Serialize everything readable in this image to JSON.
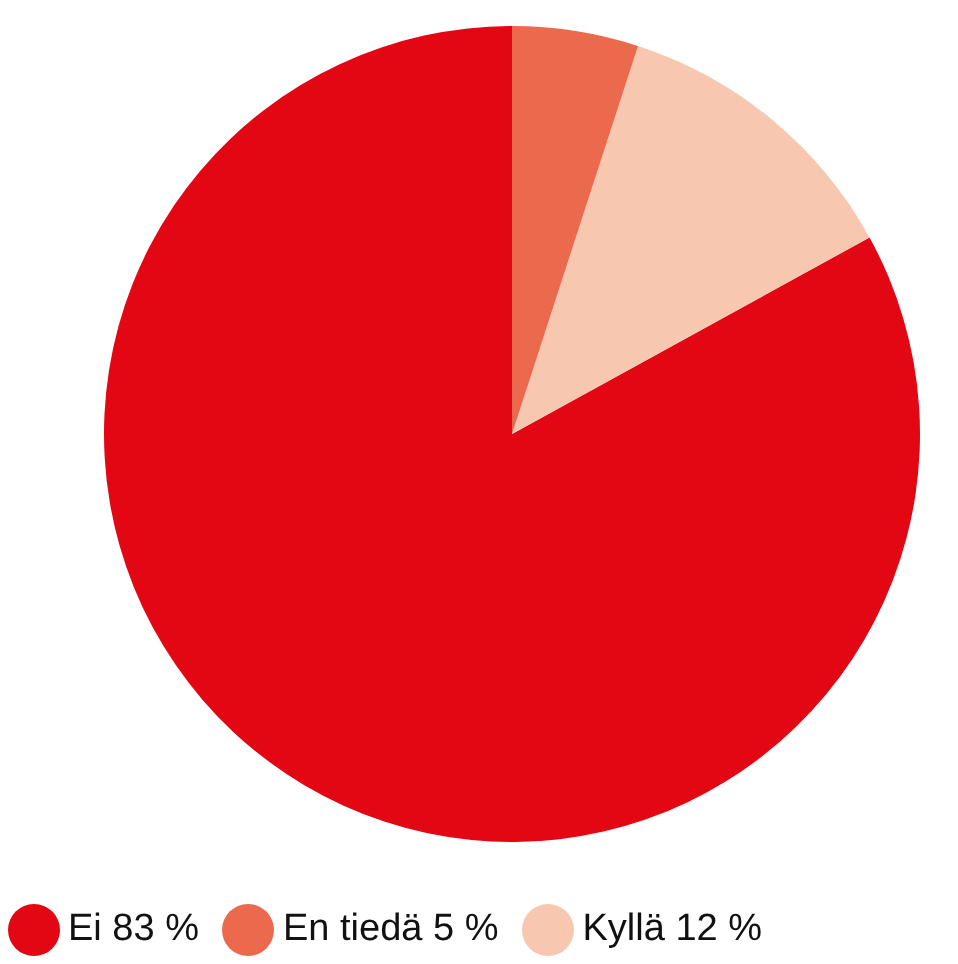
{
  "chart_data": {
    "type": "pie",
    "categories": [
      "Ei 83 %",
      "Kyllä 12 %",
      "En tiedä 5 %"
    ],
    "values": [
      83,
      12,
      5
    ],
    "colors": [
      "#e30613",
      "#f8c7b0",
      "#eb6a4d"
    ],
    "legend": "bottom"
  }
}
